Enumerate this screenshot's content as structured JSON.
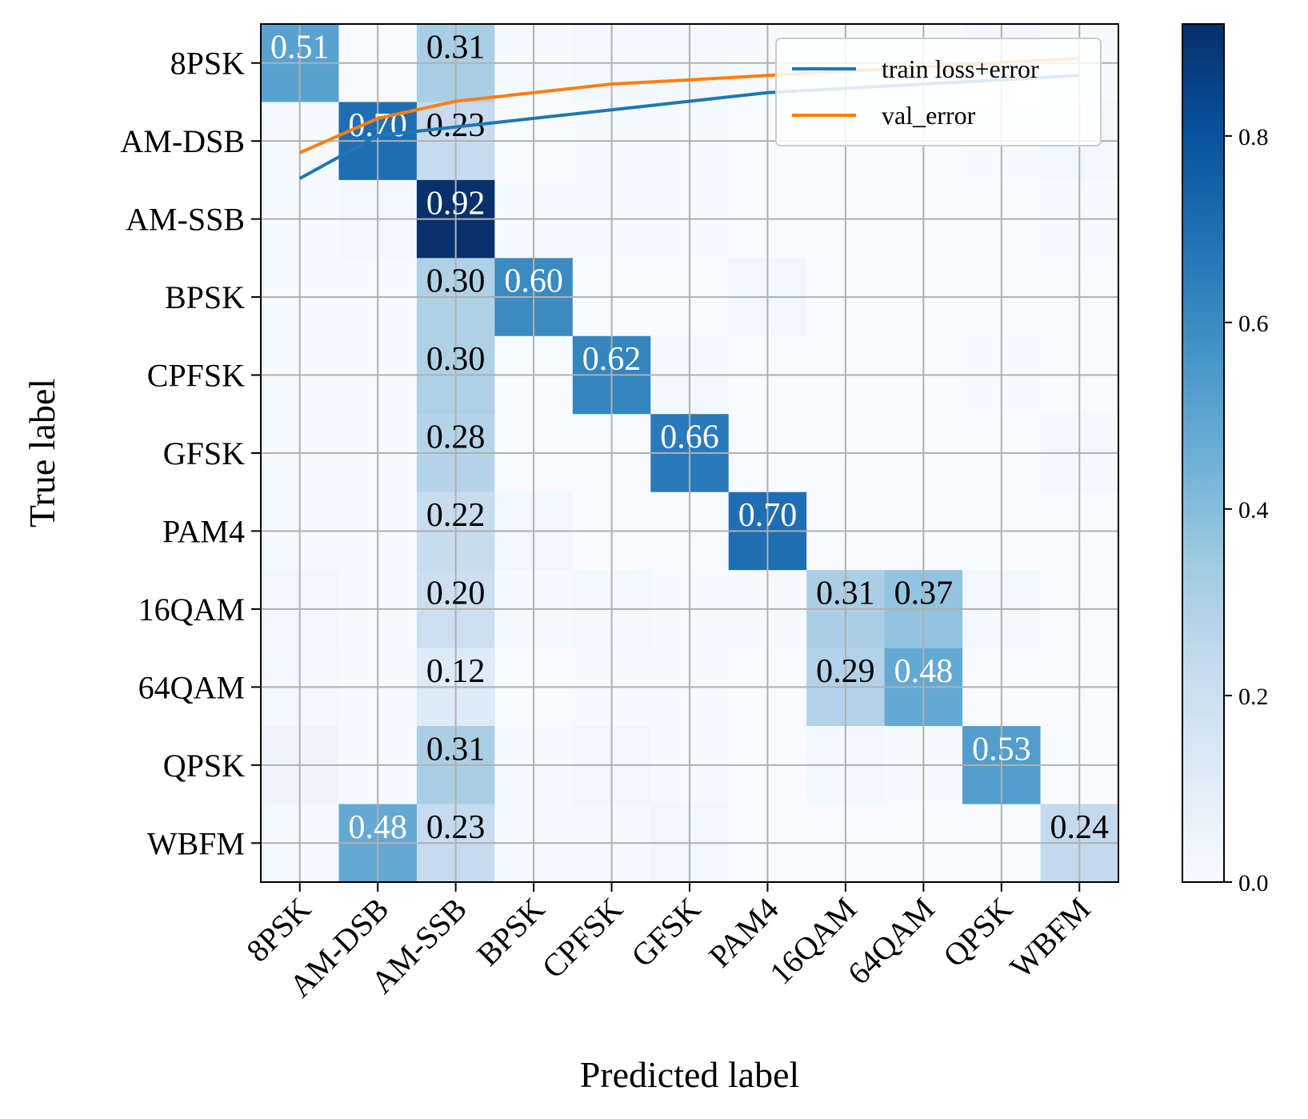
{
  "chart_data": {
    "type": "heatmap",
    "title": "",
    "xlabel": "Predicted label",
    "ylabel": "True label",
    "x_categories": [
      "8PSK",
      "AM-DSB",
      "AM-SSB",
      "BPSK",
      "CPFSK",
      "GFSK",
      "PAM4",
      "16QAM",
      "64QAM",
      "QPSK",
      "WBFM"
    ],
    "y_categories": [
      "8PSK",
      "AM-DSB",
      "AM-SSB",
      "BPSK",
      "CPFSK",
      "GFSK",
      "PAM4",
      "16QAM",
      "64QAM",
      "QPSK",
      "WBFM"
    ],
    "matrix": [
      [
        0.51,
        0.0,
        0.31,
        0.01,
        0.02,
        0.02,
        0.01,
        0.01,
        0.01,
        0.02,
        0.01
      ],
      [
        0.01,
        0.7,
        0.23,
        0.0,
        0.01,
        0.01,
        0.0,
        0.0,
        0.0,
        0.01,
        0.03
      ],
      [
        0.01,
        0.02,
        0.92,
        0.01,
        0.01,
        0.01,
        0.0,
        0.0,
        0.0,
        0.0,
        0.01
      ],
      [
        0.01,
        0.01,
        0.3,
        0.6,
        0.0,
        0.0,
        0.03,
        0.0,
        0.0,
        0.0,
        0.0
      ],
      [
        0.01,
        0.01,
        0.3,
        0.0,
        0.62,
        0.02,
        0.0,
        0.0,
        0.0,
        0.01,
        0.0
      ],
      [
        0.01,
        0.01,
        0.28,
        0.0,
        0.0,
        0.66,
        0.0,
        0.0,
        0.0,
        0.0,
        0.02
      ],
      [
        0.01,
        0.01,
        0.22,
        0.03,
        0.0,
        0.0,
        0.7,
        0.0,
        0.0,
        0.0,
        0.0
      ],
      [
        0.03,
        0.01,
        0.2,
        0.01,
        0.02,
        0.01,
        0.01,
        0.31,
        0.37,
        0.02,
        0.0
      ],
      [
        0.02,
        0.01,
        0.12,
        0.0,
        0.01,
        0.01,
        0.0,
        0.29,
        0.48,
        0.0,
        0.0
      ],
      [
        0.04,
        0.01,
        0.31,
        0.01,
        0.03,
        0.01,
        0.0,
        0.02,
        0.01,
        0.53,
        0.0
      ],
      [
        0.01,
        0.48,
        0.23,
        0.01,
        0.01,
        0.03,
        0.0,
        0.0,
        0.0,
        0.0,
        0.24
      ]
    ],
    "labeled_cells": [
      [
        0,
        0
      ],
      [
        0,
        2
      ],
      [
        1,
        1
      ],
      [
        1,
        2
      ],
      [
        2,
        2
      ],
      [
        3,
        2
      ],
      [
        3,
        3
      ],
      [
        4,
        2
      ],
      [
        4,
        4
      ],
      [
        5,
        2
      ],
      [
        5,
        5
      ],
      [
        6,
        2
      ],
      [
        6,
        6
      ],
      [
        7,
        2
      ],
      [
        7,
        7
      ],
      [
        7,
        8
      ],
      [
        8,
        2
      ],
      [
        8,
        7
      ],
      [
        8,
        8
      ],
      [
        9,
        2
      ],
      [
        9,
        9
      ],
      [
        10,
        1
      ],
      [
        10,
        2
      ],
      [
        10,
        10
      ]
    ],
    "colormap": "Blues",
    "color_range": [
      0.0,
      0.92
    ],
    "colorbar_ticks": [
      "0.0",
      "0.2",
      "0.4",
      "0.6",
      "0.8"
    ],
    "grid": true,
    "overlay_lines": {
      "legend_position": "upper-right",
      "series": [
        {
          "name": "train loss+error",
          "color": "#1f77b4",
          "x": [
            0,
            1,
            2,
            3,
            4,
            5,
            6,
            7,
            8,
            9,
            10
          ],
          "y": [
            0.82,
            0.87,
            0.88,
            0.89,
            0.9,
            0.91,
            0.92,
            0.925,
            0.93,
            0.935,
            0.94
          ]
        },
        {
          "name": "val_error",
          "color": "#ff7f0e",
          "x": [
            0,
            1,
            2,
            3,
            4,
            5,
            6,
            7,
            8,
            9,
            10
          ],
          "y": [
            0.85,
            0.89,
            0.91,
            0.92,
            0.93,
            0.935,
            0.94,
            0.945,
            0.95,
            0.955,
            0.96
          ]
        }
      ],
      "legend_labels": [
        "train loss+error",
        "val_error"
      ]
    }
  }
}
